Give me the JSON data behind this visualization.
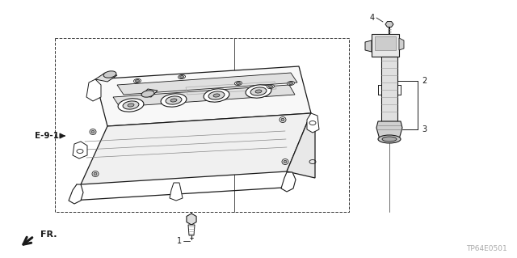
{
  "bg_color": "#ffffff",
  "title_code": "TP64E0501",
  "fig_width": 6.4,
  "fig_height": 3.19,
  "dpi": 100,
  "lw_main": 0.9,
  "lw_thin": 0.6,
  "lw_thick": 1.5,
  "color_main": "#1a1a1a",
  "color_dashed": "#333333",
  "color_gray": "#666666"
}
